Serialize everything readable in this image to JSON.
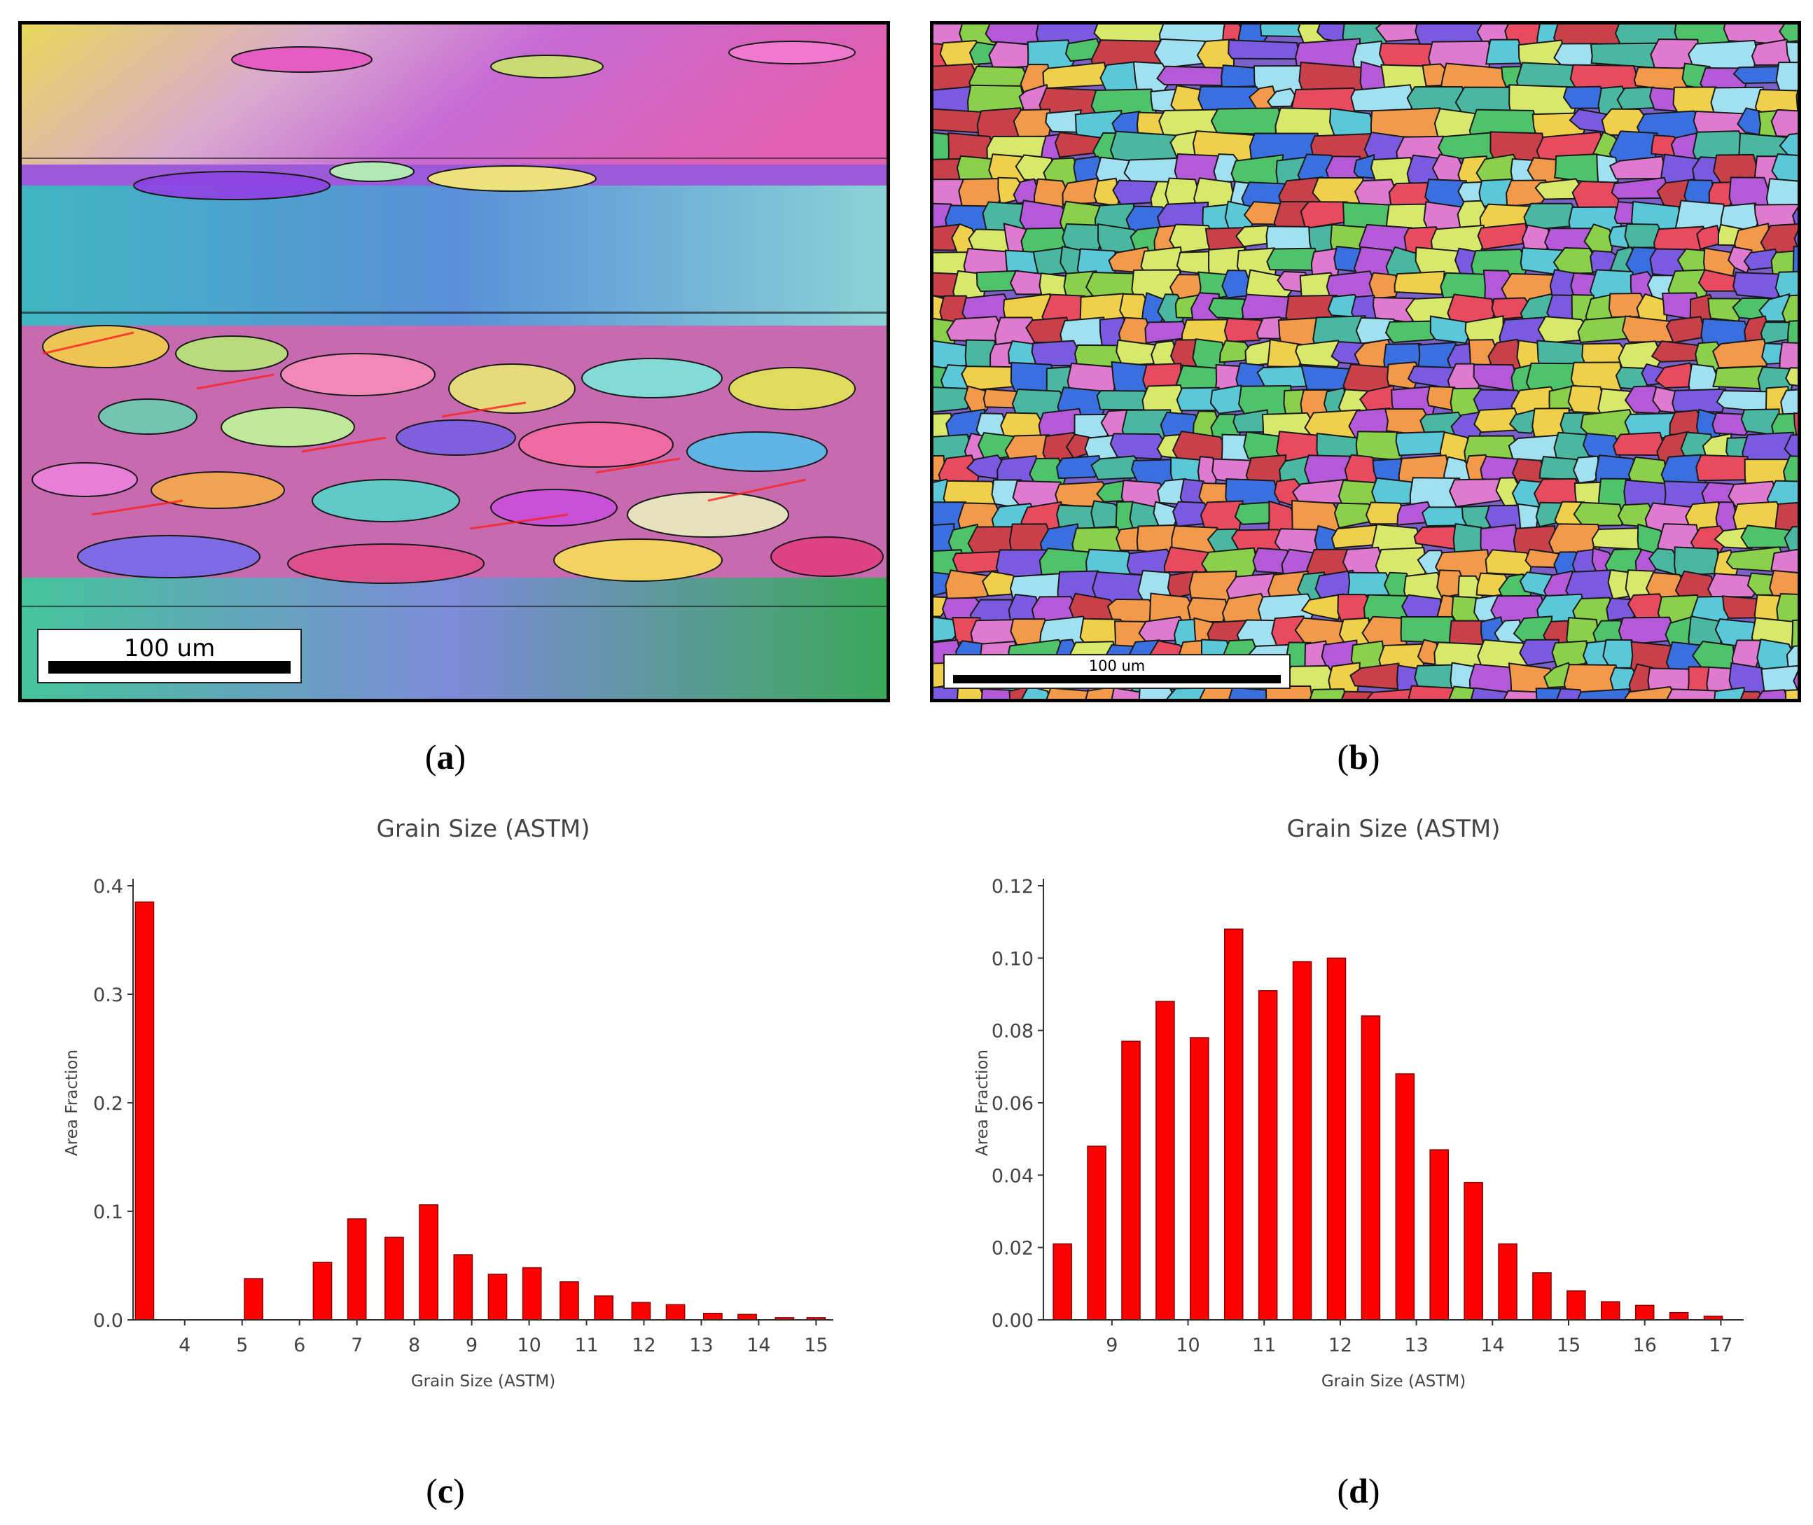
{
  "panels": {
    "a": {
      "caption": "a",
      "scale_label": "100 um"
    },
    "b": {
      "caption": "b",
      "scale_label": "100 um"
    },
    "c": {
      "caption": "c"
    },
    "d": {
      "caption": "d"
    }
  },
  "colors": {
    "bar": "#ff0000",
    "bar_edge": "#8a0000",
    "axis": "#333333"
  },
  "chart_data": [
    {
      "id": "c",
      "type": "bar",
      "title": "Grain Size (ASTM)",
      "xlabel": "Grain Size (ASTM)",
      "ylabel": "Area Fraction",
      "xlim": [
        3.1,
        15.3
      ],
      "ylim": [
        0,
        0.4
      ],
      "xticks": [
        4,
        5,
        6,
        7,
        8,
        9,
        10,
        11,
        12,
        13,
        14,
        15
      ],
      "yticks": [
        0.0,
        0.1,
        0.2,
        0.3,
        0.4
      ],
      "ytick_labels": [
        "0.0",
        "0.1",
        "0.2",
        "0.3",
        "0.4"
      ],
      "bar_width": 0.32,
      "x": [
        3.3,
        5.2,
        6.4,
        7.0,
        7.65,
        8.25,
        8.85,
        9.45,
        10.05,
        10.7,
        11.3,
        11.95,
        12.55,
        13.2,
        13.8,
        14.45,
        15.0
      ],
      "values": [
        0.385,
        0.038,
        0.053,
        0.093,
        0.076,
        0.106,
        0.06,
        0.042,
        0.048,
        0.035,
        0.022,
        0.016,
        0.014,
        0.006,
        0.005,
        0.002,
        0.002
      ]
    },
    {
      "id": "d",
      "type": "bar",
      "title": "Grain Size (ASTM)",
      "xlabel": "Grain Size (ASTM)",
      "ylabel": "Area Fraction",
      "xlim": [
        8.1,
        17.3
      ],
      "ylim": [
        0,
        0.12
      ],
      "xticks": [
        9,
        10,
        11,
        12,
        13,
        14,
        15,
        16,
        17
      ],
      "yticks": [
        0.0,
        0.02,
        0.04,
        0.06,
        0.08,
        0.1,
        0.12
      ],
      "ytick_labels": [
        "0.00",
        "0.02",
        "0.04",
        "0.06",
        "0.08",
        "0.10",
        "0.12"
      ],
      "bar_width": 0.24,
      "x": [
        8.35,
        8.8,
        9.25,
        9.7,
        10.15,
        10.6,
        11.05,
        11.5,
        11.95,
        12.4,
        12.85,
        13.3,
        13.75,
        14.2,
        14.65,
        15.1,
        15.55,
        16.0,
        16.45,
        16.9
      ],
      "values": [
        0.021,
        0.048,
        0.077,
        0.088,
        0.078,
        0.108,
        0.091,
        0.099,
        0.1,
        0.084,
        0.068,
        0.047,
        0.038,
        0.021,
        0.013,
        0.008,
        0.005,
        0.004,
        0.002,
        0.001
      ]
    }
  ]
}
